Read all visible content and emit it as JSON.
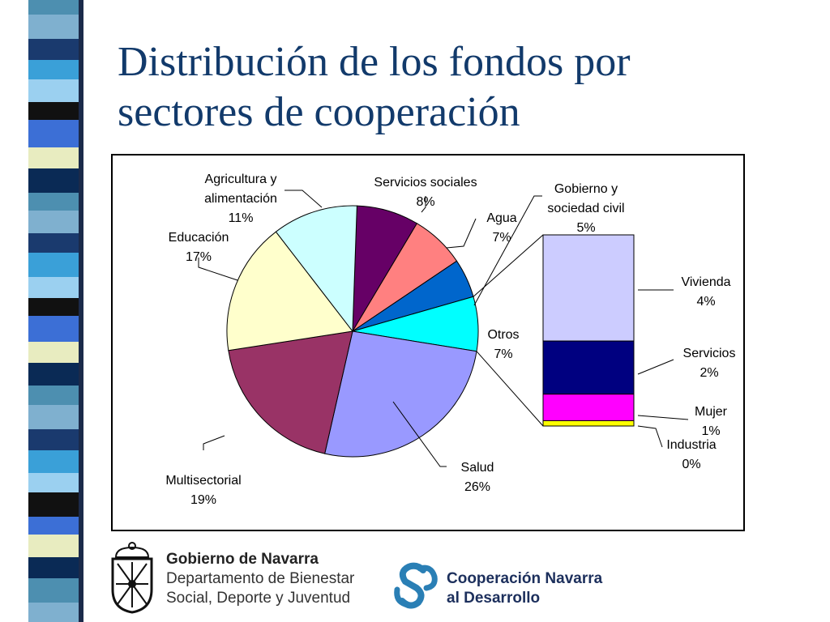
{
  "slide": {
    "title_line1": "Distribución de los fondos por",
    "title_line2": "sectores de cooperación"
  },
  "chart_data": {
    "type": "pie",
    "subtype": "bar-of-pie",
    "slices": [
      {
        "name": "Servicios sociales",
        "value": 8,
        "label": "8%",
        "color": "#660066"
      },
      {
        "name": "Agua",
        "value": 7,
        "label": "7%",
        "color": "#ff8080"
      },
      {
        "name": "Gobierno y sociedad civil",
        "value": 5,
        "label": "5%",
        "color": "#0066cc"
      },
      {
        "name": "Otros",
        "value": 7,
        "label": "7%",
        "color": "#00ffff"
      },
      {
        "name": "Salud",
        "value": 26,
        "label": "26%",
        "color": "#9999ff"
      },
      {
        "name": "Multisectorial",
        "value": 19,
        "label": "19%",
        "color": "#993366"
      },
      {
        "name": "Educación",
        "value": 17,
        "label": "17%",
        "color": "#ffffcc"
      },
      {
        "name": "Agricultura y alimentación",
        "value": 11,
        "label": "11%",
        "color": "#ccffff"
      }
    ],
    "bar_breakdown_of": "Otros",
    "bar_segments": [
      {
        "name": "Vivienda",
        "value": 4,
        "label": "4%",
        "color": "#ccccff"
      },
      {
        "name": "Servicios",
        "value": 2,
        "label": "2%",
        "color": "#000080"
      },
      {
        "name": "Mujer",
        "value": 1,
        "label": "1%",
        "color": "#ff00ff"
      },
      {
        "name": "Industria",
        "value": 0.2,
        "label": "0%",
        "color": "#ffff00"
      }
    ],
    "slice_label_lines": {
      "Agricultura y alimentación": [
        "Agricultura y",
        "alimentación",
        "11%"
      ],
      "Servicios sociales": [
        "Servicios sociales",
        "8%"
      ],
      "Agua": [
        "Agua",
        "7%"
      ],
      "Gobierno y sociedad civil": [
        "Gobierno y",
        "sociedad civil",
        "5%"
      ],
      "Otros": [
        "Otros",
        "7%"
      ],
      "Salud": [
        "Salud",
        "26%"
      ],
      "Multisectorial": [
        "Multisectorial",
        "19%"
      ],
      "Educación": [
        "Educación",
        "17%"
      ]
    },
    "bar_label_lines": {
      "Vivienda": [
        "Vivienda",
        "4%"
      ],
      "Servicios": [
        "Servicios",
        "2%"
      ],
      "Mujer": [
        "Mujer",
        "1%"
      ],
      "Industria": [
        "Industria",
        "0%"
      ]
    }
  },
  "footer": {
    "gov_name": "Gobierno de Navarra",
    "gov_dept_line1": "Departamento de Bienestar",
    "gov_dept_line2": "Social, Deporte y Juventud",
    "coop_line1": "Cooperación Navarra",
    "coop_line2": "al Desarrollo",
    "coop_color": "#2a7fb5"
  }
}
